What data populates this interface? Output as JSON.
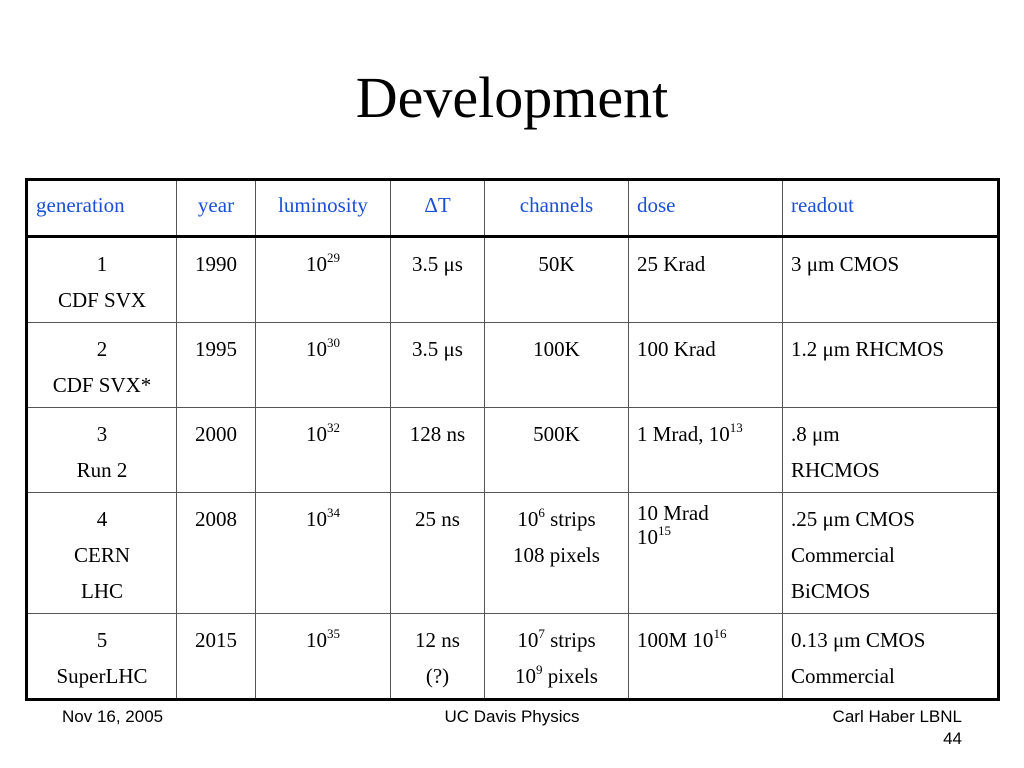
{
  "title": "Development",
  "table": {
    "headers": [
      "generation",
      "year",
      "luminosity",
      "ΔT",
      "channels",
      "dose",
      "readout"
    ],
    "rows": [
      {
        "generation": [
          "1",
          "CDF SVX"
        ],
        "year": "1990",
        "luminosity": {
          "base": "10",
          "exp": "29"
        },
        "deltaT": [
          "3.5 μs"
        ],
        "channels": [
          {
            "base": "50K",
            "exp": "",
            "suffix": ""
          }
        ],
        "dose": [
          {
            "text": "25 Krad",
            "exp": ""
          }
        ],
        "readout": [
          "3 μm CMOS"
        ]
      },
      {
        "generation": [
          "2",
          "CDF SVX*"
        ],
        "year": "1995",
        "luminosity": {
          "base": "10",
          "exp": "30"
        },
        "deltaT": [
          "3.5 μs"
        ],
        "channels": [
          {
            "base": "100K",
            "exp": "",
            "suffix": ""
          }
        ],
        "dose": [
          {
            "text": "100 Krad",
            "exp": ""
          }
        ],
        "readout": [
          "1.2 μm RHCMOS"
        ]
      },
      {
        "generation": [
          "3",
          "Run 2"
        ],
        "year": "2000",
        "luminosity": {
          "base": "10",
          "exp": "32"
        },
        "deltaT": [
          "128 ns"
        ],
        "channels": [
          {
            "base": "500K",
            "exp": "",
            "suffix": ""
          }
        ],
        "dose": [
          {
            "text": "1 Mrad, 10",
            "exp": "13"
          }
        ],
        "readout": [
          ".8 μm",
          "RHCMOS"
        ]
      },
      {
        "generation": [
          "4",
          "CERN",
          "LHC"
        ],
        "year": "2008",
        "luminosity": {
          "base": "10",
          "exp": "34"
        },
        "deltaT": [
          "25 ns"
        ],
        "channels": [
          {
            "base": "10",
            "exp": "6",
            "suffix": " strips"
          },
          {
            "base": "108 pixels",
            "exp": "",
            "suffix": ""
          }
        ],
        "dose": [
          {
            "text": "10 Mrad",
            "exp": ""
          },
          {
            "text": "10",
            "exp": "15"
          }
        ],
        "readout": [
          ".25 μm CMOS",
          "Commercial",
          "BiCMOS"
        ]
      },
      {
        "generation": [
          "5",
          "SuperLHC"
        ],
        "year": "2015",
        "luminosity": {
          "base": "10",
          "exp": "35"
        },
        "deltaT": [
          "12 ns",
          "(?)"
        ],
        "channels": [
          {
            "base": "10",
            "exp": "7",
            "suffix": " strips"
          },
          {
            "base": "10",
            "exp": "9",
            "suffix": " pixels"
          }
        ],
        "dose": [
          {
            "text": "100M 10",
            "exp": "16"
          }
        ],
        "readout": [
          "0.13 μm CMOS",
          "Commercial"
        ]
      }
    ]
  },
  "footer": {
    "left": "Nov 16, 2005",
    "center": "UC Davis Physics",
    "right_line1": "Carl Haber LBNL",
    "right_line2": "44"
  }
}
